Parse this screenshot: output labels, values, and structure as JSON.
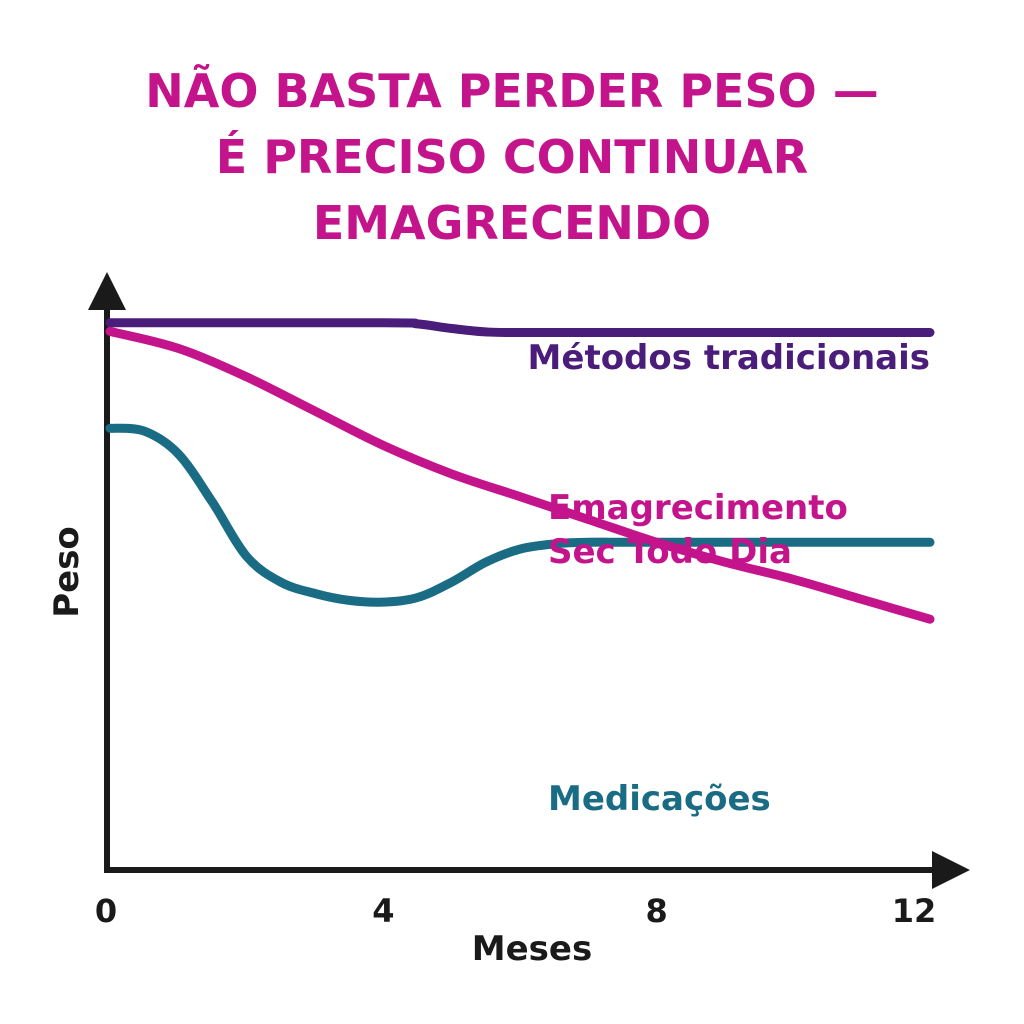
{
  "title_lines": [
    "NÃO BASTA PERDER PESO —",
    "É PRECISO CONTINUAR",
    "EMAGRECENDO"
  ],
  "chart_data": {
    "type": "line",
    "title": "NÃO BASTA PERDER PESO — É PRECISO CONTINUAR EMAGRECENDO",
    "xlabel": "Meses",
    "ylabel": "Peso",
    "x_ticks": [
      "0",
      "4",
      "8",
      "12"
    ],
    "xlim": [
      0,
      12
    ],
    "y_ticks": [],
    "grid": false,
    "series": [
      {
        "name": "Métodos tradicionais",
        "color": "#4b1d7a",
        "x": [
          0,
          4,
          4.5,
          5,
          5.5,
          6,
          8,
          12
        ],
        "y": [
          96,
          96,
          95.8,
          95,
          94.4,
          94.3,
          94.3,
          94.3
        ]
      },
      {
        "name": "Emagrecimento Sec Todo Dia",
        "color": "#c4148c",
        "x": [
          0,
          1,
          2,
          3,
          4,
          5,
          6,
          7,
          8,
          9,
          10,
          11,
          12
        ],
        "y": [
          94.5,
          91.5,
          86.5,
          80.5,
          74.5,
          69.5,
          65.5,
          61.5,
          57.5,
          54,
          51,
          47.5,
          44
        ]
      },
      {
        "name": "Medicações",
        "color": "#1a6b84",
        "x": [
          0,
          0.5,
          1,
          1.5,
          2,
          2.5,
          3,
          3.5,
          4,
          4.5,
          5,
          5.5,
          6,
          6.5,
          7,
          8,
          12
        ],
        "y": [
          77.5,
          77,
          73,
          64.5,
          55,
          50.5,
          48.5,
          47.3,
          47,
          47.8,
          50.5,
          54,
          56.3,
          57.2,
          57.5,
          57.5,
          57.5
        ]
      }
    ]
  }
}
